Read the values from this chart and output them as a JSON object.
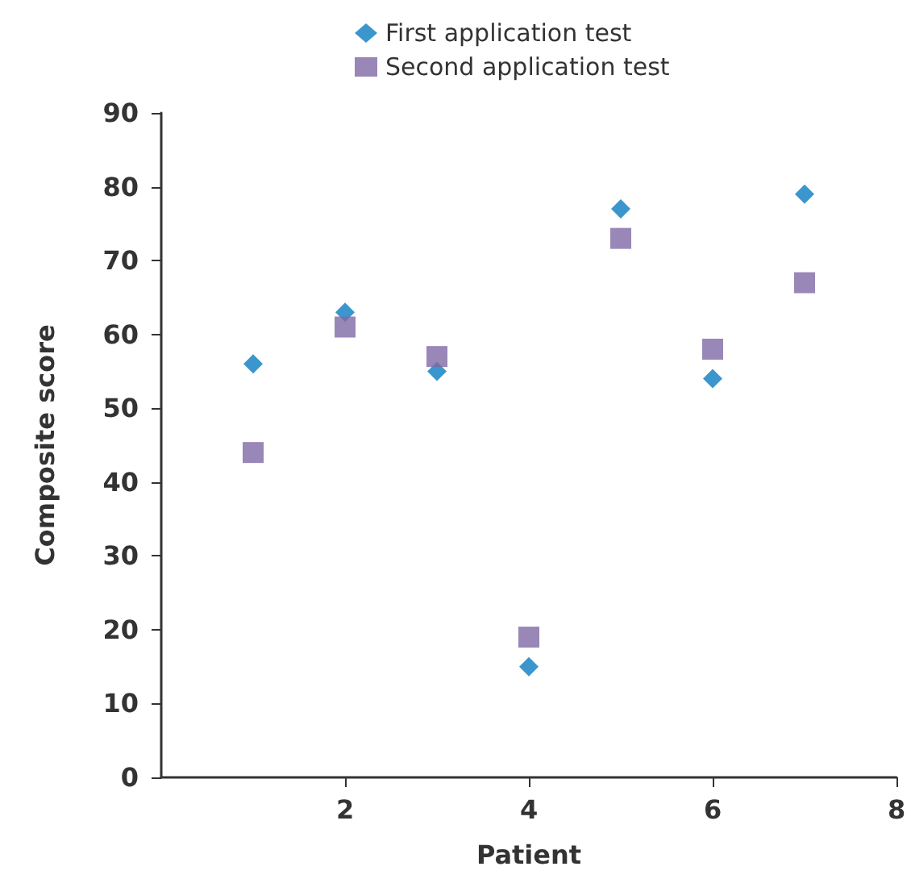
{
  "chart_data": {
    "type": "scatter",
    "xlabel": "Patient",
    "ylabel": "Composite score",
    "series": [
      {
        "name": "First application test",
        "color": "#0a7cc1",
        "marker": "diamond",
        "x": [
          1,
          2,
          3,
          4,
          5,
          6,
          7
        ],
        "values": [
          56,
          63,
          55,
          15,
          77,
          54,
          79
        ]
      },
      {
        "name": "Second application test",
        "color": "#7f69a5",
        "marker": "square",
        "x": [
          1,
          2,
          3,
          4,
          5,
          6,
          7
        ],
        "values": [
          44,
          61,
          57,
          19,
          73,
          58,
          67
        ]
      }
    ],
    "xlim": [
      0,
      8
    ],
    "xticks": [
      2,
      4,
      6,
      8
    ],
    "ylim": [
      0,
      90
    ],
    "yticks": [
      0,
      10,
      20,
      30,
      40,
      50,
      60,
      70,
      80,
      90
    ],
    "grid": false,
    "legend": "top"
  }
}
